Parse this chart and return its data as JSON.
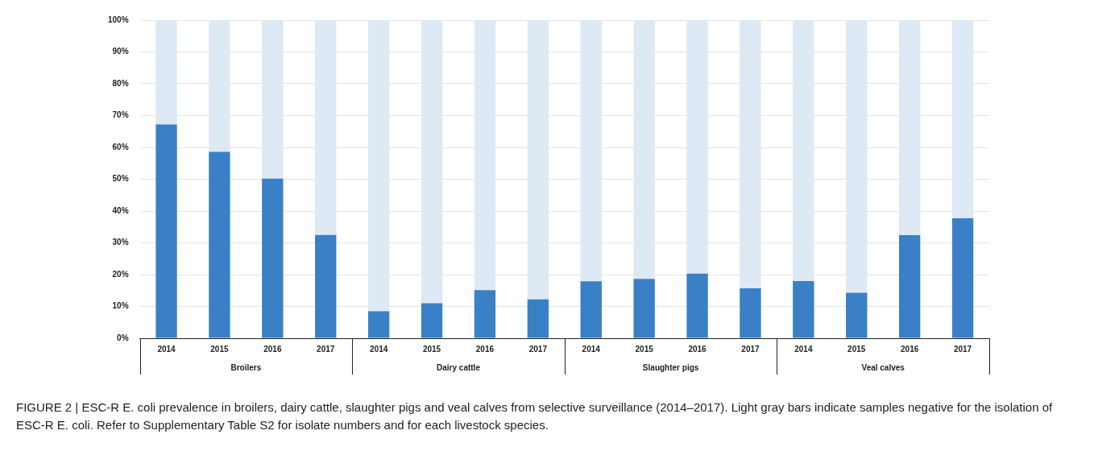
{
  "chart_data": {
    "type": "bar",
    "stacked": true,
    "categories": [
      "2014",
      "2015",
      "2016",
      "2017",
      "2014",
      "2015",
      "2016",
      "2017",
      "2014",
      "2015",
      "2016",
      "2017",
      "2014",
      "2015",
      "2016",
      "2017"
    ],
    "series": [
      {
        "color": "#3a80c6",
        "values": [
          67.2,
          58.6,
          50.2,
          32.5,
          8.5,
          11.0,
          15.1,
          12.2,
          17.9,
          18.7,
          20.3,
          15.7,
          18.0,
          14.3,
          32.4,
          37.7
        ]
      },
      {
        "color": "#dde9f5",
        "values": [
          32.8,
          41.4,
          49.8,
          67.5,
          91.5,
          89.0,
          84.9,
          87.8,
          82.1,
          81.3,
          79.7,
          84.3,
          82.0,
          85.7,
          67.6,
          62.3
        ]
      }
    ],
    "ylim": [
      0,
      100
    ],
    "yticks": [
      {
        "value": 0,
        "label": "0%"
      },
      {
        "value": 10,
        "label": "10%"
      },
      {
        "value": 20,
        "label": "20%"
      },
      {
        "value": 30,
        "label": "30%"
      },
      {
        "value": 40,
        "label": "40%"
      },
      {
        "value": 50,
        "label": "50%"
      },
      {
        "value": 60,
        "label": "60%"
      },
      {
        "value": 70,
        "label": "70%"
      },
      {
        "value": 80,
        "label": "80%"
      },
      {
        "value": 90,
        "label": "90%"
      },
      {
        "value": 100,
        "label": "100%"
      }
    ],
    "grid": "y",
    "legend": false,
    "annotations": [
      "Broilers",
      "Dairy cattle",
      "Slaughter pigs",
      "Veal calves",
      "FIGURE 2 | ESC-R E. coli prevalence in broilers, dairy cattle, slaughter pigs and veal calves from selective surveillance (2014–2017). Light gray bars indicate samples negative for the isolation of ESC-R E. coli. Refer to Supplementary Table S2 for isolate numbers and for each livestock species."
    ]
  }
}
